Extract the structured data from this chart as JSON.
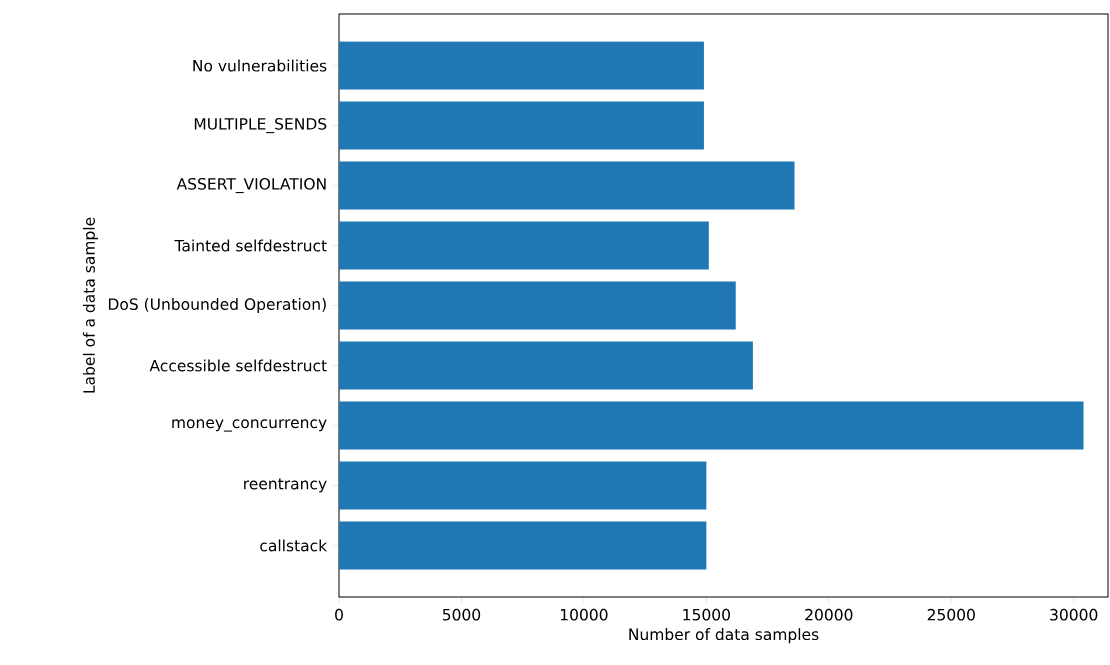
{
  "chart_data": {
    "type": "bar",
    "orientation": "horizontal",
    "xlabel": "Number of data samples",
    "ylabel": "Label of a data sample",
    "categories": [
      "No vulnerabilities",
      "MULTIPLE_SENDS",
      "ASSERT_VIOLATION",
      "Tainted selfdestruct",
      "DoS (Unbounded Operation)",
      "Accessible selfdestruct",
      "money_concurrency",
      "reentrancy",
      "callstack"
    ],
    "values": [
      14900,
      14900,
      18600,
      15100,
      16200,
      16900,
      30400,
      15000,
      15000
    ],
    "color": "#1f77b4",
    "xlim": [
      0,
      31400
    ],
    "xticks": [
      0,
      5000,
      10000,
      15000,
      20000,
      25000,
      30000
    ]
  }
}
